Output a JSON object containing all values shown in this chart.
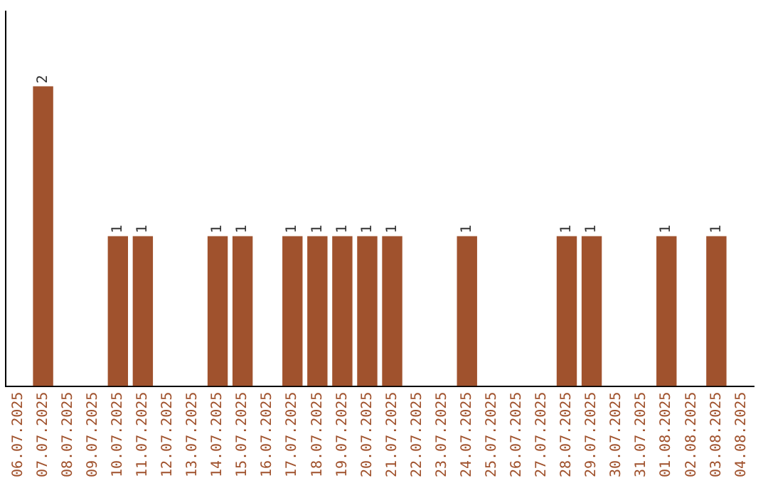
{
  "chart_data": {
    "type": "bar",
    "categories": [
      "06.07.2025",
      "07.07.2025",
      "08.07.2025",
      "09.07.2025",
      "10.07.2025",
      "11.07.2025",
      "12.07.2025",
      "13.07.2025",
      "14.07.2025",
      "15.07.2025",
      "16.07.2025",
      "17.07.2025",
      "18.07.2025",
      "19.07.2025",
      "20.07.2025",
      "21.07.2025",
      "22.07.2025",
      "23.07.2025",
      "24.07.2025",
      "25.07.2025",
      "26.07.2025",
      "27.07.2025",
      "28.07.2025",
      "29.07.2025",
      "30.07.2025",
      "31.07.2025",
      "01.08.2025",
      "02.08.2025",
      "03.08.2025",
      "04.08.2025"
    ],
    "values": [
      0,
      2,
      0,
      0,
      1,
      1,
      0,
      0,
      1,
      1,
      0,
      1,
      1,
      1,
      1,
      1,
      0,
      0,
      1,
      0,
      0,
      0,
      1,
      1,
      0,
      0,
      1,
      0,
      1,
      0
    ],
    "value_labels": [
      null,
      "2",
      null,
      null,
      "1",
      "1",
      null,
      null,
      "1",
      "1",
      null,
      "1",
      "1",
      "1",
      "1",
      "1",
      null,
      null,
      "1",
      null,
      null,
      null,
      "1",
      "1",
      null,
      null,
      "1",
      null,
      "1",
      null
    ],
    "color": "#a0522d",
    "grid": false,
    "legend": false,
    "tick_labels": "x"
  }
}
